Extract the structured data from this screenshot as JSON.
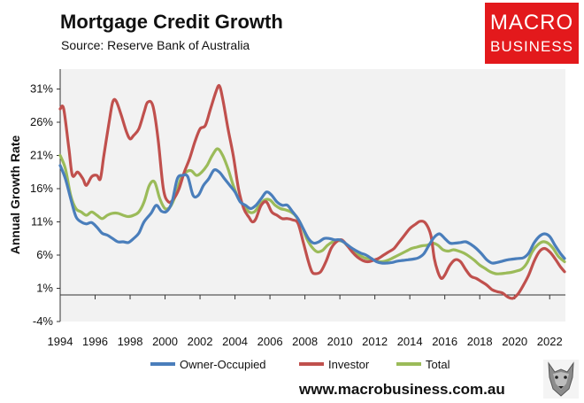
{
  "header": {
    "title": "Mortgage Credit Growth",
    "subtitle": "Source: Reserve Bank of Australia"
  },
  "logo": {
    "line1": "MACRO",
    "line2": "BUSINESS"
  },
  "footer": {
    "url": "www.macrobusiness.com.au"
  },
  "colors": {
    "plot_background": "#f2f2f2",
    "owner_occupied": "#4a7ebb",
    "investor": "#c0504d",
    "total": "#9bbb59",
    "logo_red": "#e3191c"
  },
  "chart_data": {
    "type": "line",
    "title": "Mortgage Credit Growth",
    "ylabel": "Annual Growth Rate",
    "xlabel": "",
    "x_range": [
      1994,
      2022.9
    ],
    "ylim": [
      -4,
      34
    ],
    "y_ticks": [
      -4,
      1,
      6,
      11,
      16,
      21,
      26,
      31
    ],
    "y_tick_labels": [
      "-4%",
      "1%",
      "6%",
      "11%",
      "16%",
      "21%",
      "26%",
      "31%"
    ],
    "x_ticks": [
      1994,
      1996,
      1998,
      2000,
      2002,
      2004,
      2006,
      2008,
      2010,
      2012,
      2014,
      2016,
      2018,
      2020,
      2022
    ],
    "x_tick_labels": [
      "1994",
      "1996",
      "1998",
      "2000",
      "2002",
      "2004",
      "2006",
      "2008",
      "2010",
      "2012",
      "2014",
      "2016",
      "2018",
      "2020",
      "2022"
    ],
    "grid": false,
    "legend_position": "bottom",
    "series": [
      {
        "name": "Owner-Occupied",
        "points": [
          [
            1994.0,
            19.5
          ],
          [
            1994.3,
            17.5
          ],
          [
            1994.6,
            14.5
          ],
          [
            1994.9,
            11.8
          ],
          [
            1995.2,
            11.0
          ],
          [
            1995.5,
            10.7
          ],
          [
            1995.8,
            10.9
          ],
          [
            1996.1,
            10.2
          ],
          [
            1996.4,
            9.3
          ],
          [
            1996.7,
            9.0
          ],
          [
            1997.0,
            8.5
          ],
          [
            1997.3,
            8.0
          ],
          [
            1997.6,
            8.0
          ],
          [
            1997.9,
            7.9
          ],
          [
            1998.2,
            8.5
          ],
          [
            1998.5,
            9.3
          ],
          [
            1998.8,
            11.0
          ],
          [
            1999.2,
            12.3
          ],
          [
            1999.5,
            13.5
          ],
          [
            1999.8,
            12.6
          ],
          [
            2000.1,
            12.6
          ],
          [
            2000.4,
            14.0
          ],
          [
            2000.7,
            17.5
          ],
          [
            2001.0,
            18.0
          ],
          [
            2001.3,
            17.8
          ],
          [
            2001.6,
            15.0
          ],
          [
            2001.9,
            15.0
          ],
          [
            2002.2,
            16.5
          ],
          [
            2002.5,
            17.5
          ],
          [
            2002.8,
            18.8
          ],
          [
            2003.1,
            18.5
          ],
          [
            2003.4,
            17.5
          ],
          [
            2003.7,
            16.5
          ],
          [
            2004.0,
            15.5
          ],
          [
            2004.3,
            14.0
          ],
          [
            2004.6,
            13.5
          ],
          [
            2004.9,
            13.0
          ],
          [
            2005.2,
            13.5
          ],
          [
            2005.5,
            14.5
          ],
          [
            2005.8,
            15.5
          ],
          [
            2006.1,
            15.0
          ],
          [
            2006.4,
            14.0
          ],
          [
            2006.7,
            13.5
          ],
          [
            2007.0,
            13.5
          ],
          [
            2007.3,
            12.5
          ],
          [
            2007.6,
            11.5
          ],
          [
            2007.9,
            10.0
          ],
          [
            2008.2,
            8.5
          ],
          [
            2008.5,
            7.8
          ],
          [
            2008.8,
            8.0
          ],
          [
            2009.1,
            8.5
          ],
          [
            2009.4,
            8.5
          ],
          [
            2009.7,
            8.3
          ],
          [
            2010.0,
            8.3
          ],
          [
            2010.3,
            7.8
          ],
          [
            2010.6,
            7.2
          ],
          [
            2010.9,
            6.7
          ],
          [
            2011.2,
            6.3
          ],
          [
            2011.5,
            6.0
          ],
          [
            2011.8,
            5.5
          ],
          [
            2012.1,
            5.0
          ],
          [
            2012.4,
            4.8
          ],
          [
            2012.7,
            4.8
          ],
          [
            2013.0,
            4.9
          ],
          [
            2013.3,
            5.1
          ],
          [
            2013.6,
            5.2
          ],
          [
            2013.9,
            5.3
          ],
          [
            2014.2,
            5.4
          ],
          [
            2014.5,
            5.6
          ],
          [
            2014.8,
            6.2
          ],
          [
            2015.1,
            7.5
          ],
          [
            2015.4,
            8.7
          ],
          [
            2015.7,
            9.2
          ],
          [
            2016.0,
            8.5
          ],
          [
            2016.3,
            7.8
          ],
          [
            2016.6,
            7.8
          ],
          [
            2016.9,
            7.9
          ],
          [
            2017.2,
            8.0
          ],
          [
            2017.5,
            7.6
          ],
          [
            2017.8,
            7.0
          ],
          [
            2018.1,
            6.2
          ],
          [
            2018.4,
            5.3
          ],
          [
            2018.7,
            4.8
          ],
          [
            2019.0,
            4.9
          ],
          [
            2019.3,
            5.1
          ],
          [
            2019.6,
            5.3
          ],
          [
            2019.9,
            5.4
          ],
          [
            2020.2,
            5.5
          ],
          [
            2020.5,
            5.6
          ],
          [
            2020.8,
            6.3
          ],
          [
            2021.1,
            7.8
          ],
          [
            2021.4,
            8.8
          ],
          [
            2021.7,
            9.2
          ],
          [
            2022.0,
            8.8
          ],
          [
            2022.3,
            7.5
          ],
          [
            2022.6,
            6.3
          ],
          [
            2022.85,
            5.5
          ]
        ]
      },
      {
        "name": "Investor",
        "points": [
          [
            1994.0,
            28.0
          ],
          [
            1994.2,
            28.0
          ],
          [
            1994.5,
            22.0
          ],
          [
            1994.7,
            18.0
          ],
          [
            1995.0,
            18.5
          ],
          [
            1995.3,
            17.5
          ],
          [
            1995.5,
            16.5
          ],
          [
            1995.8,
            17.8
          ],
          [
            1996.1,
            18.0
          ],
          [
            1996.3,
            17.5
          ],
          [
            1996.5,
            21.0
          ],
          [
            1996.8,
            26.0
          ],
          [
            1997.0,
            29.0
          ],
          [
            1997.2,
            29.2
          ],
          [
            1997.5,
            27.0
          ],
          [
            1997.8,
            24.5
          ],
          [
            1998.0,
            23.5
          ],
          [
            1998.2,
            24.0
          ],
          [
            1998.5,
            25.0
          ],
          [
            1998.8,
            27.5
          ],
          [
            1999.0,
            29.0
          ],
          [
            1999.3,
            28.5
          ],
          [
            1999.6,
            23.5
          ],
          [
            1999.9,
            16.0
          ],
          [
            2000.2,
            14.0
          ],
          [
            2000.5,
            14.5
          ],
          [
            2000.8,
            16.0
          ],
          [
            2001.1,
            18.5
          ],
          [
            2001.4,
            20.5
          ],
          [
            2001.7,
            23.0
          ],
          [
            2002.0,
            25.0
          ],
          [
            2002.3,
            25.5
          ],
          [
            2002.6,
            28.0
          ],
          [
            2002.9,
            30.5
          ],
          [
            2003.1,
            31.5
          ],
          [
            2003.3,
            29.5
          ],
          [
            2003.6,
            25.0
          ],
          [
            2003.9,
            21.0
          ],
          [
            2004.2,
            16.0
          ],
          [
            2004.5,
            13.0
          ],
          [
            2004.8,
            11.7
          ],
          [
            2005.0,
            11.0
          ],
          [
            2005.2,
            11.5
          ],
          [
            2005.5,
            13.5
          ],
          [
            2005.8,
            14.0
          ],
          [
            2006.1,
            12.5
          ],
          [
            2006.4,
            12.0
          ],
          [
            2006.7,
            11.5
          ],
          [
            2007.0,
            11.5
          ],
          [
            2007.3,
            11.3
          ],
          [
            2007.6,
            10.8
          ],
          [
            2007.9,
            8.0
          ],
          [
            2008.2,
            5.0
          ],
          [
            2008.4,
            3.5
          ],
          [
            2008.6,
            3.2
          ],
          [
            2008.9,
            3.5
          ],
          [
            2009.2,
            5.0
          ],
          [
            2009.5,
            7.0
          ],
          [
            2009.8,
            8.0
          ],
          [
            2010.1,
            8.3
          ],
          [
            2010.4,
            7.5
          ],
          [
            2010.7,
            6.5
          ],
          [
            2011.0,
            5.7
          ],
          [
            2011.3,
            5.2
          ],
          [
            2011.6,
            5.0
          ],
          [
            2011.9,
            5.2
          ],
          [
            2012.2,
            5.5
          ],
          [
            2012.5,
            6.0
          ],
          [
            2012.8,
            6.5
          ],
          [
            2013.1,
            7.0
          ],
          [
            2013.4,
            8.0
          ],
          [
            2013.7,
            9.0
          ],
          [
            2014.0,
            10.0
          ],
          [
            2014.3,
            10.6
          ],
          [
            2014.6,
            11.1
          ],
          [
            2014.9,
            10.8
          ],
          [
            2015.2,
            9.0
          ],
          [
            2015.4,
            5.5
          ],
          [
            2015.6,
            3.5
          ],
          [
            2015.8,
            2.5
          ],
          [
            2016.0,
            3.0
          ],
          [
            2016.3,
            4.5
          ],
          [
            2016.6,
            5.3
          ],
          [
            2016.9,
            5.0
          ],
          [
            2017.2,
            3.8
          ],
          [
            2017.5,
            2.8
          ],
          [
            2017.8,
            2.5
          ],
          [
            2018.1,
            2.0
          ],
          [
            2018.4,
            1.5
          ],
          [
            2018.7,
            0.8
          ],
          [
            2019.0,
            0.5
          ],
          [
            2019.3,
            0.3
          ],
          [
            2019.6,
            -0.3
          ],
          [
            2019.9,
            -0.5
          ],
          [
            2020.2,
            0.2
          ],
          [
            2020.5,
            1.5
          ],
          [
            2020.8,
            3.0
          ],
          [
            2021.1,
            5.0
          ],
          [
            2021.4,
            6.5
          ],
          [
            2021.7,
            7.0
          ],
          [
            2022.0,
            6.5
          ],
          [
            2022.3,
            5.5
          ],
          [
            2022.6,
            4.3
          ],
          [
            2022.85,
            3.5
          ]
        ]
      },
      {
        "name": "Total",
        "points": [
          [
            1994.0,
            21.0
          ],
          [
            1994.3,
            19.0
          ],
          [
            1994.6,
            15.0
          ],
          [
            1994.9,
            13.0
          ],
          [
            1995.2,
            12.5
          ],
          [
            1995.5,
            12.0
          ],
          [
            1995.8,
            12.5
          ],
          [
            1996.1,
            12.0
          ],
          [
            1996.4,
            11.5
          ],
          [
            1996.7,
            12.0
          ],
          [
            1997.0,
            12.3
          ],
          [
            1997.3,
            12.3
          ],
          [
            1997.6,
            12.0
          ],
          [
            1997.9,
            11.8
          ],
          [
            1998.2,
            12.0
          ],
          [
            1998.5,
            12.5
          ],
          [
            1998.8,
            14.0
          ],
          [
            1999.1,
            16.5
          ],
          [
            1999.4,
            17.0
          ],
          [
            1999.7,
            14.5
          ],
          [
            2000.0,
            13.0
          ],
          [
            2000.3,
            13.3
          ],
          [
            2000.6,
            15.0
          ],
          [
            2000.9,
            17.5
          ],
          [
            2001.2,
            18.5
          ],
          [
            2001.5,
            18.7
          ],
          [
            2001.8,
            18.0
          ],
          [
            2002.1,
            18.5
          ],
          [
            2002.4,
            19.5
          ],
          [
            2002.7,
            21.0
          ],
          [
            2003.0,
            22.0
          ],
          [
            2003.3,
            21.0
          ],
          [
            2003.6,
            19.0
          ],
          [
            2003.9,
            16.5
          ],
          [
            2004.2,
            14.5
          ],
          [
            2004.5,
            13.5
          ],
          [
            2004.8,
            12.5
          ],
          [
            2005.1,
            12.5
          ],
          [
            2005.4,
            13.5
          ],
          [
            2005.7,
            14.3
          ],
          [
            2006.0,
            14.3
          ],
          [
            2006.3,
            13.5
          ],
          [
            2006.6,
            13.0
          ],
          [
            2006.9,
            12.8
          ],
          [
            2007.2,
            12.5
          ],
          [
            2007.5,
            11.8
          ],
          [
            2007.8,
            10.5
          ],
          [
            2008.1,
            8.5
          ],
          [
            2008.4,
            7.2
          ],
          [
            2008.7,
            6.5
          ],
          [
            2009.0,
            6.7
          ],
          [
            2009.3,
            7.5
          ],
          [
            2009.6,
            8.0
          ],
          [
            2009.9,
            8.2
          ],
          [
            2010.2,
            8.0
          ],
          [
            2010.5,
            7.2
          ],
          [
            2010.8,
            6.5
          ],
          [
            2011.1,
            6.0
          ],
          [
            2011.4,
            5.6
          ],
          [
            2011.7,
            5.4
          ],
          [
            2012.0,
            5.2
          ],
          [
            2012.3,
            5.0
          ],
          [
            2012.6,
            5.1
          ],
          [
            2012.9,
            5.4
          ],
          [
            2013.2,
            5.8
          ],
          [
            2013.5,
            6.2
          ],
          [
            2013.8,
            6.6
          ],
          [
            2014.1,
            7.0
          ],
          [
            2014.4,
            7.2
          ],
          [
            2014.7,
            7.4
          ],
          [
            2015.0,
            7.5
          ],
          [
            2015.3,
            7.8
          ],
          [
            2015.6,
            7.5
          ],
          [
            2015.9,
            6.8
          ],
          [
            2016.2,
            6.6
          ],
          [
            2016.5,
            6.8
          ],
          [
            2016.8,
            6.6
          ],
          [
            2017.1,
            6.3
          ],
          [
            2017.4,
            5.8
          ],
          [
            2017.7,
            5.2
          ],
          [
            2018.0,
            4.5
          ],
          [
            2018.3,
            4.0
          ],
          [
            2018.6,
            3.5
          ],
          [
            2018.9,
            3.2
          ],
          [
            2019.2,
            3.2
          ],
          [
            2019.5,
            3.3
          ],
          [
            2019.8,
            3.4
          ],
          [
            2020.1,
            3.6
          ],
          [
            2020.4,
            3.9
          ],
          [
            2020.7,
            4.8
          ],
          [
            2021.0,
            6.5
          ],
          [
            2021.3,
            7.5
          ],
          [
            2021.6,
            8.0
          ],
          [
            2021.9,
            7.8
          ],
          [
            2022.2,
            7.0
          ],
          [
            2022.5,
            5.8
          ],
          [
            2022.85,
            5.0
          ]
        ]
      }
    ]
  }
}
